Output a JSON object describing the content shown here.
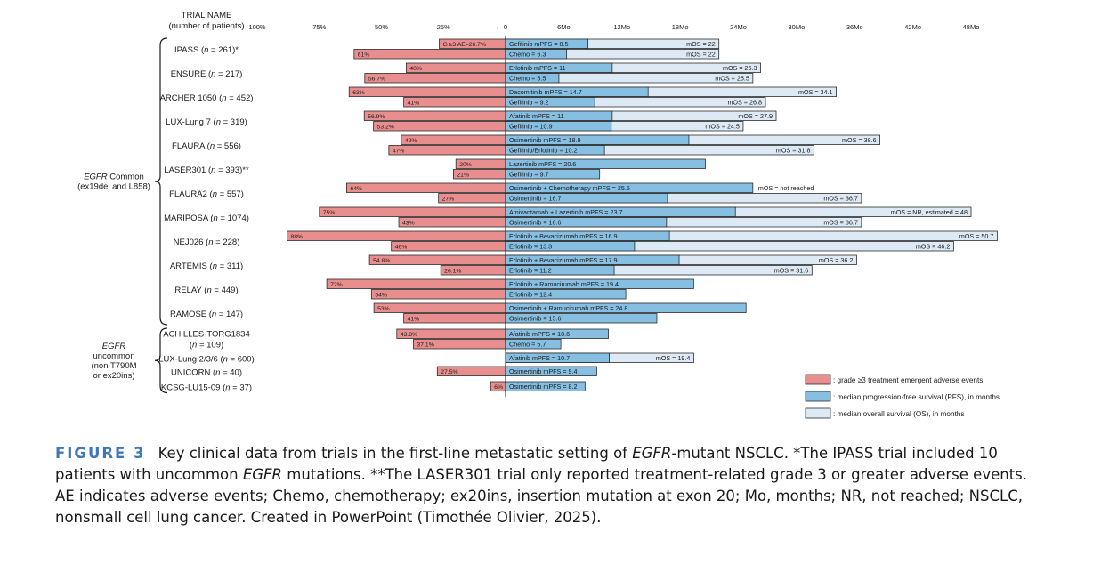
{
  "chart_data": {
    "type": "bar",
    "header": {
      "title": "TRIAL NAME",
      "subtitle": "(number of patients)"
    },
    "ae_axis": {
      "ticks": [
        "100%",
        "75%",
        "50%",
        "25%"
      ],
      "max": 100
    },
    "center_label": "← 0 →",
    "time_axis": {
      "ticks": [
        "6Mo",
        "12Mo",
        "18Mo",
        "24Mo",
        "30Mo",
        "36Mo",
        "42Mo",
        "48Mo"
      ],
      "max": 48,
      "unit": "months"
    },
    "colors": {
      "ae": "#e88e8e",
      "pfs": "#87bfe3",
      "os": "#dde9f5",
      "border": "#2b2b2b"
    },
    "groups": [
      {
        "label_lines": [
          {
            "text": "EGFR",
            "italic": true
          },
          {
            "text": " Common",
            "italic": false
          }
        ],
        "label_line2": "(ex19del and L858)",
        "first_trial": 0,
        "last_trial": 11
      },
      {
        "label_lines": [
          {
            "text": "EGFR",
            "italic": true
          }
        ],
        "label_line2": "uncommon",
        "label_line3": "(non T790M",
        "label_line4": "or ex20ins)",
        "first_trial": 12,
        "last_trial": 15
      }
    ],
    "trials": [
      {
        "name": "IPASS",
        "n": "261",
        "suffix": "*",
        "rows": [
          {
            "ae": 26.7,
            "ae_label": "G ≥3 AE=26.7%",
            "pfs": 8.5,
            "pfs_label": "Gefitinib mPFS = 8.5",
            "os": 22,
            "os_label": "mOS = 22"
          },
          {
            "ae": 61,
            "ae_label": "61%",
            "pfs": 6.3,
            "pfs_label": "Chemo = 6.3",
            "os": 22,
            "os_label": "mOS = 22"
          }
        ]
      },
      {
        "name": "ENSURE",
        "n": "217",
        "suffix": "",
        "rows": [
          {
            "ae": 40,
            "ae_label": "40%",
            "pfs": 11,
            "pfs_label": "Erlotinib mPFS = 11",
            "os": 26.3,
            "os_label": "mOS = 26.3"
          },
          {
            "ae": 56.7,
            "ae_label": "56.7%",
            "pfs": 5.5,
            "pfs_label": "Chemo = 5.5",
            "os": 25.5,
            "os_label": "mOS = 25.5"
          }
        ]
      },
      {
        "name": "ARCHER 1050",
        "n": "452",
        "suffix": "",
        "rows": [
          {
            "ae": 63,
            "ae_label": "63%",
            "pfs": 14.7,
            "pfs_label": "Dacomitinib mPFS = 14.7",
            "os": 34.1,
            "os_label": "mOS = 34.1"
          },
          {
            "ae": 41,
            "ae_label": "41%",
            "pfs": 9.2,
            "pfs_label": "Gefitinib = 9.2",
            "os": 26.8,
            "os_label": "mOS = 26.8"
          }
        ]
      },
      {
        "name": "LUX-Lung 7",
        "n": "319",
        "suffix": "",
        "rows": [
          {
            "ae": 56.9,
            "ae_label": "56.9%",
            "pfs": 11,
            "pfs_label": "Afatinib mPFS = 11",
            "os": 27.9,
            "os_label": "mOS = 27.9"
          },
          {
            "ae": 53.2,
            "ae_label": "53.2%",
            "pfs": 10.9,
            "pfs_label": "Gefitinib = 10.9",
            "os": 24.5,
            "os_label": "mOS = 24.5"
          }
        ]
      },
      {
        "name": "FLAURA",
        "n": "556",
        "suffix": "",
        "rows": [
          {
            "ae": 42,
            "ae_label": "42%",
            "pfs": 18.9,
            "pfs_label": "Osimertinib mPFS = 18.9",
            "os": 38.6,
            "os_label": "mOS = 38.6"
          },
          {
            "ae": 47,
            "ae_label": "47%",
            "pfs": 10.2,
            "pfs_label": "Gefitinib/Erlotinib = 10.2",
            "os": 31.8,
            "os_label": "mOS = 31.8"
          }
        ]
      },
      {
        "name": "LASER301",
        "n": "393",
        "suffix": "**",
        "rows": [
          {
            "ae": 20,
            "ae_label": "20%",
            "pfs": 20.6,
            "pfs_label": "Lazertinib mPFS = 20.6"
          },
          {
            "ae": 21,
            "ae_label": "21%",
            "pfs": 9.7,
            "pfs_label": "Gefitinib = 9.7"
          }
        ]
      },
      {
        "name": "FLAURA2",
        "n": "557",
        "suffix": "",
        "rows": [
          {
            "ae": 64,
            "ae_label": "64%",
            "pfs": 25.5,
            "pfs_label": "Osimertinib + Chemotherapy mPFS = 25.5",
            "os_label": "mOS = not reached"
          },
          {
            "ae": 27,
            "ae_label": "27%",
            "pfs": 16.7,
            "pfs_label": "Osimertinib = 16.7",
            "os": 36.7,
            "os_label": "mOS = 36.7"
          }
        ]
      },
      {
        "name": "MARIPOSA",
        "n": "1074",
        "suffix": "",
        "rows": [
          {
            "ae": 75,
            "ae_label": "75%",
            "pfs": 23.7,
            "pfs_label": "Amivantamab + Lazertinib mPFS = 23.7",
            "os": 48,
            "os_label": "mOS = NR, estimated = 48"
          },
          {
            "ae": 43,
            "ae_label": "43%",
            "pfs": 16.6,
            "pfs_label": "Osimertinib = 16.6",
            "os": 36.7,
            "os_label": "mOS = 36.7"
          }
        ]
      },
      {
        "name": "NEJ026",
        "n": "228",
        "suffix": "",
        "rows": [
          {
            "ae": 88,
            "ae_label": "88%",
            "pfs": 16.9,
            "pfs_label": "Erlotinib + Bevacizumab mPFS = 16.9",
            "os": 50.7,
            "os_label": "mOS = 50.7"
          },
          {
            "ae": 46,
            "ae_label": "46%",
            "pfs": 13.3,
            "pfs_label": "Erlotinib = 13.3",
            "os": 46.2,
            "os_label": "mOS = 46.2"
          }
        ]
      },
      {
        "name": "ARTEMIS",
        "n": "311",
        "suffix": "",
        "rows": [
          {
            "ae": 54.8,
            "ae_label": "54.8%",
            "pfs": 17.9,
            "pfs_label": "Erlotinib + Bevacizumab mPFS = 17.9",
            "os": 36.2,
            "os_label": "mOS = 36.2"
          },
          {
            "ae": 26.1,
            "ae_label": "26.1%",
            "pfs": 11.2,
            "pfs_label": "Erlotinib = 11.2",
            "os": 31.6,
            "os_label": "mOS = 31.6"
          }
        ]
      },
      {
        "name": "RELAY",
        "n": "449",
        "suffix": "",
        "rows": [
          {
            "ae": 72,
            "ae_label": "72%",
            "pfs": 19.4,
            "pfs_label": "Erlotinib + Ramucirumab mPFS = 19.4"
          },
          {
            "ae": 54,
            "ae_label": "54%",
            "pfs": 12.4,
            "pfs_label": "Erlotinib = 12.4"
          }
        ]
      },
      {
        "name": "RAMOSE",
        "n": "147",
        "suffix": "",
        "rows": [
          {
            "ae": 53,
            "ae_label": "53%",
            "pfs": 24.8,
            "pfs_label": "Osimertinib + Ramucirumab mPFS = 24.8"
          },
          {
            "ae": 41,
            "ae_label": "41%",
            "pfs": 15.6,
            "pfs_label": "Osimertinib = 15.6"
          }
        ]
      },
      {
        "name": "ACHILLES-TORG1834",
        "n": "109",
        "suffix": "",
        "two_line": true,
        "rows": [
          {
            "ae": 43.8,
            "ae_label": "43.8%",
            "pfs": 10.6,
            "pfs_label": "Afatinib mPFS = 10.6"
          },
          {
            "ae": 37.1,
            "ae_label": "37.1%",
            "pfs": 5.7,
            "pfs_label": "Chemo = 5.7"
          }
        ]
      },
      {
        "name": "LUX-Lung 2/3/6",
        "n": "600",
        "suffix": "",
        "rows": [
          {
            "ae": null,
            "pfs": 10.7,
            "pfs_label": "Afatinib mPFS = 10.7",
            "os": 19.4,
            "os_label": "mOS = 19.4"
          }
        ]
      },
      {
        "name": "UNICORN",
        "n": "40",
        "suffix": "",
        "rows": [
          {
            "ae": 27.5,
            "ae_label": "27.5%",
            "pfs": 9.4,
            "pfs_label": "Osimertinib mPFS = 9.4"
          }
        ]
      },
      {
        "name": "KCSG-LU15-09",
        "n": "37",
        "suffix": "",
        "rows": [
          {
            "ae": 6,
            "ae_label": "6%",
            "pfs": 8.2,
            "pfs_label": "Osimertinib mPFS = 8.2"
          }
        ]
      }
    ],
    "legend": [
      {
        "key": "ae",
        "label": ": grade ≥3 treatment emergent adverse events"
      },
      {
        "key": "pfs",
        "label": ": median progression-free survival (PFS), in months"
      },
      {
        "key": "os",
        "label": ": median overall survival (OS), in months"
      }
    ]
  },
  "caption": {
    "figure_label": "FIGURE 3",
    "text_1": "Key clinical data from trials in the first-line metastatic setting of ",
    "egfr_1": "EGFR",
    "text_2": "-mutant NSCLC. *The IPASS trial included 10 patients with uncommon ",
    "egfr_2": "EGFR",
    "text_3": " mutations. **The LASER301 trial only reported treatment-related grade 3 or greater adverse events. AE indicates adverse events; Chemo, chemotherapy; ex20ins, insertion mutation at exon 20; Mo, months; NR, not reached; NSCLC, nonsmall cell lung cancer. Created in PowerPoint (Timothée Olivier, 2025)."
  }
}
